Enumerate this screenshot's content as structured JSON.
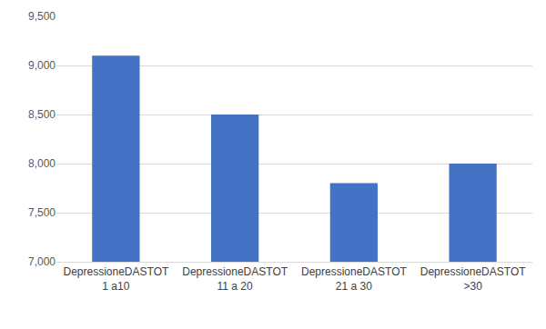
{
  "chart_data": {
    "type": "bar",
    "categories": [
      "DepressioneDASTOT 1 a10",
      "DepressioneDASTOT 11 a 20",
      "DepressioneDASTOT 21 a 30",
      "DepressioneDASTOT >30"
    ],
    "values": [
      9100,
      8500,
      7800,
      8000
    ],
    "color": "#4472c4",
    "ylim": [
      7000,
      9500
    ],
    "yticks": [
      {
        "value": 7000,
        "label": "7,000"
      },
      {
        "value": 7500,
        "label": "7,500"
      },
      {
        "value": 8000,
        "label": "8,000"
      },
      {
        "value": 8500,
        "label": "8,500"
      },
      {
        "value": 9000,
        "label": "9,000"
      },
      {
        "value": 9500,
        "label": "9,500"
      }
    ],
    "grid": true
  }
}
